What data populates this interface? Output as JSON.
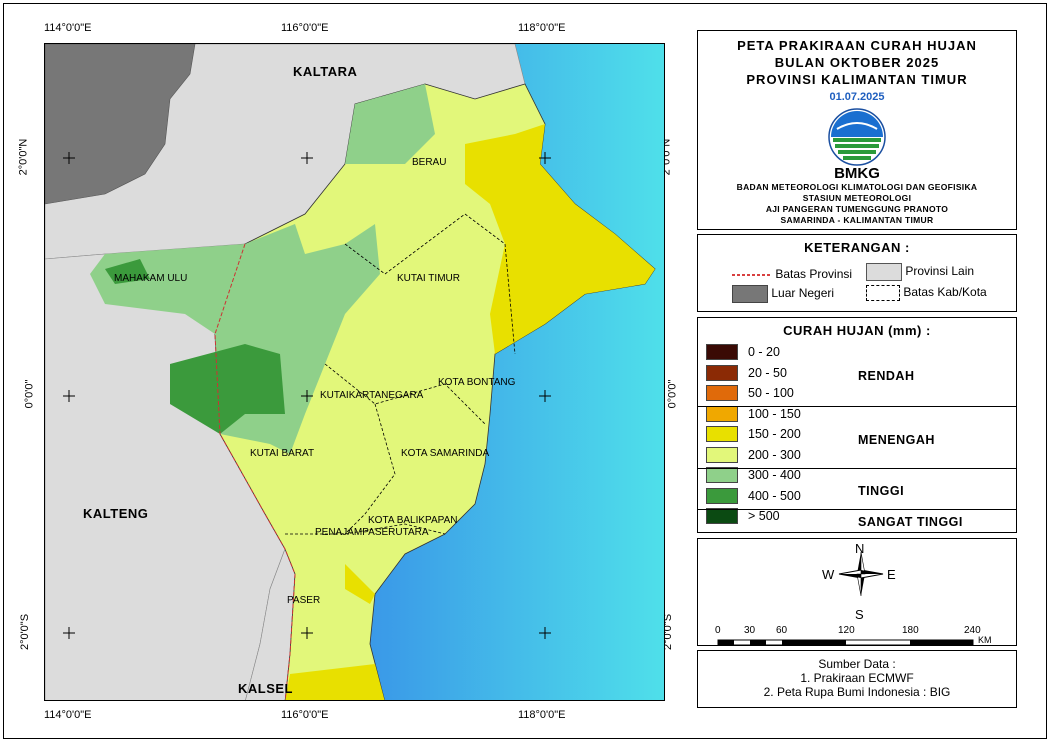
{
  "title": {
    "line1": "PETA PRAKIRAAN CURAH HUJAN",
    "line2": "BULAN OKTOBER 2025",
    "line3": "PROVINSI KALIMANTAN TIMUR",
    "date": "01.07.2025",
    "logo_text": "BMKG",
    "inst1": "BADAN METEOROLOGI KLIMATOLOGI DAN GEOFISIKA",
    "inst2": "STASIUN METEOROLOGI",
    "inst3": "AJI PANGERAN TUMENGGUNG PRANOTO",
    "inst4": "SAMARINDA - KALIMANTAN TIMUR"
  },
  "keterangan": {
    "title": "KETERANGAN :",
    "items": [
      "Batas Provinsi",
      "Provinsi Lain",
      "Luar Negeri",
      "Batas Kab/Kota"
    ]
  },
  "curah_hujan": {
    "title": "CURAH HUJAN (mm) :",
    "classes": [
      {
        "label": "0 - 20",
        "color": "#3a0a05"
      },
      {
        "label": "20 - 50",
        "color": "#8b2a05"
      },
      {
        "label": "50 - 100",
        "color": "#e06a0a"
      },
      {
        "label": "100 - 150",
        "color": "#f0a800"
      },
      {
        "label": "150  - 200",
        "color": "#e8e000"
      },
      {
        "label": "200 - 300",
        "color": "#e2f77a"
      },
      {
        "label": "300 - 400",
        "color": "#8fd08a"
      },
      {
        "label": "400 - 500",
        "color": "#3b9a3c"
      },
      {
        "label": "> 500",
        "color": "#0b4a12"
      }
    ],
    "categories": [
      "RENDAH",
      "MENENGAH",
      "TINGGI",
      "SANGAT TINGGI"
    ]
  },
  "compass": {
    "n": "N",
    "s": "S",
    "e": "E",
    "w": "W"
  },
  "scale": {
    "ticks": [
      "0",
      "30",
      "60",
      "120",
      "180",
      "240"
    ],
    "unit": "KM"
  },
  "source": {
    "title": "Sumber Data :",
    "line1": "1. Prakiraan ECMWF",
    "line2": "2. Peta Rupa Bumi Indonesia : BIG"
  },
  "coords": {
    "lon": [
      "114°0'0\"E",
      "116°0'0\"E",
      "118°0'0\"E"
    ],
    "lat": [
      "2°0'0\"N",
      "0°0'0\"",
      "2°0'0\"S"
    ]
  },
  "provinces": [
    "KALTARA",
    "KALTENG",
    "KALSEL"
  ],
  "districts": [
    "BERAU",
    "MAHAKAM ULU",
    "KUTAI TIMUR",
    "KOTA BONTANG",
    "KUTAIKARTANEGARA",
    "KUTAI BARAT",
    "KOTA SAMARINDA",
    "KOTA BALIKPAPAN",
    "PENAJAMPASERUTARA",
    "PASER"
  ]
}
